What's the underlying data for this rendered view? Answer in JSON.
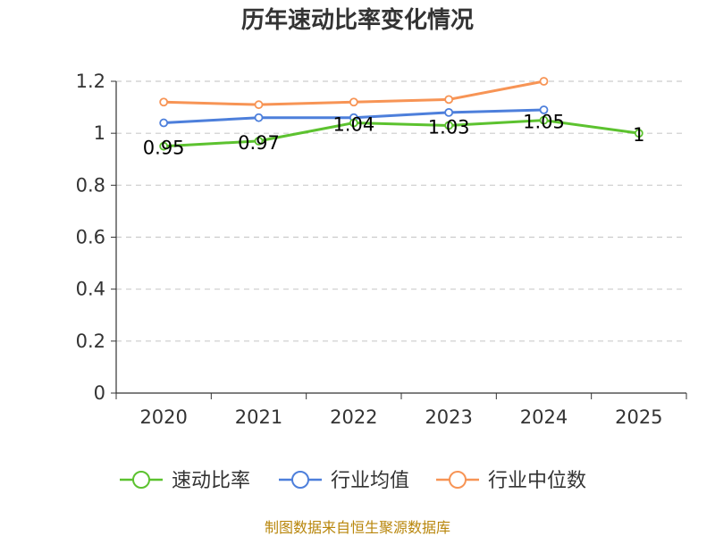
{
  "chart_data": {
    "type": "line",
    "title": "历年速动比率变化情况",
    "categories": [
      "2020",
      "2021",
      "2022",
      "2023",
      "2024",
      "2025"
    ],
    "ylim": [
      0,
      1.2
    ],
    "yticks": [
      "0",
      "0.2",
      "0.4",
      "0.6",
      "0.8",
      "1",
      "1.2"
    ],
    "grid": true,
    "legend_position": "bottom",
    "series": [
      {
        "name": "速动比率",
        "color": "#5cc22f",
        "values": [
          0.95,
          0.97,
          1.04,
          1.03,
          1.05,
          1
        ],
        "labels": [
          "0.95",
          "0.97",
          "1.04",
          "1.03",
          "1.05",
          "1"
        ]
      },
      {
        "name": "行业均值",
        "color": "#4d7fdb",
        "values": [
          1.04,
          1.06,
          1.06,
          1.08,
          1.09,
          null
        ]
      },
      {
        "name": "行业中位数",
        "color": "#f79455",
        "values": [
          1.12,
          1.11,
          1.12,
          1.13,
          1.2,
          null
        ]
      }
    ]
  },
  "footer": "制图数据来自恒生聚源数据库"
}
